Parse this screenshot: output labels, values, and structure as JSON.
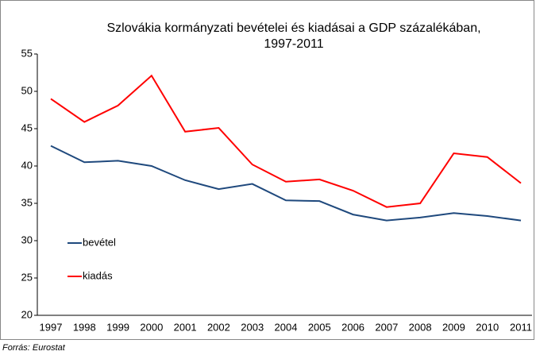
{
  "chart_data": {
    "type": "line",
    "title": [
      "Szlovákia kormányzati bevételei és kiadásai a GDP százalékában,",
      "1997-2011"
    ],
    "categories": [
      "1997",
      "1998",
      "1999",
      "2000",
      "2001",
      "2002",
      "2003",
      "2004",
      "2005",
      "2006",
      "2007",
      "2008",
      "2009",
      "2010",
      "2011"
    ],
    "series": [
      {
        "name": "bevétel",
        "color": "#1f497d",
        "values": [
          42.7,
          40.5,
          40.7,
          40.0,
          38.1,
          36.9,
          37.6,
          35.4,
          35.3,
          33.5,
          32.7,
          33.1,
          33.7,
          33.3,
          32.7
        ]
      },
      {
        "name": "kiadás",
        "color": "#ff0000",
        "values": [
          49.0,
          45.9,
          48.1,
          52.1,
          44.6,
          45.1,
          40.2,
          37.9,
          38.2,
          36.7,
          34.5,
          35.0,
          41.7,
          41.2,
          37.7
        ]
      }
    ],
    "ylim": [
      20,
      55
    ],
    "yticks": [
      20,
      25,
      30,
      35,
      40,
      45,
      50,
      55
    ],
    "grid": false,
    "legend": "left",
    "source": "Forrás: Eurostat"
  }
}
